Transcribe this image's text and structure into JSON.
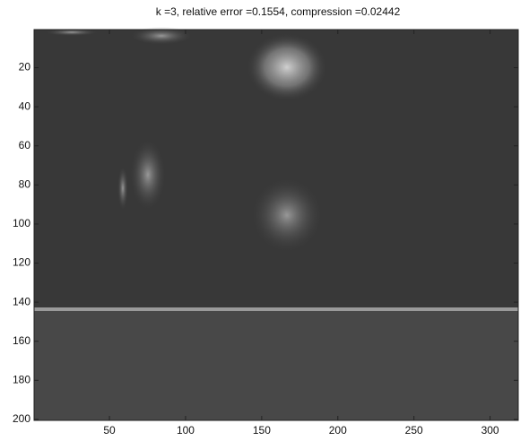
{
  "chart_data": {
    "type": "image",
    "title": "k =3, relative error =0.1554, compression =0.02442",
    "xlim": [
      0.5,
      318.5
    ],
    "ylim": [
      0.5,
      200.5
    ],
    "y_reversed": true,
    "xticks": [
      50,
      100,
      150,
      200,
      250,
      300
    ],
    "yticks": [
      20,
      40,
      60,
      80,
      100,
      120,
      140,
      160,
      180,
      200
    ]
  }
}
